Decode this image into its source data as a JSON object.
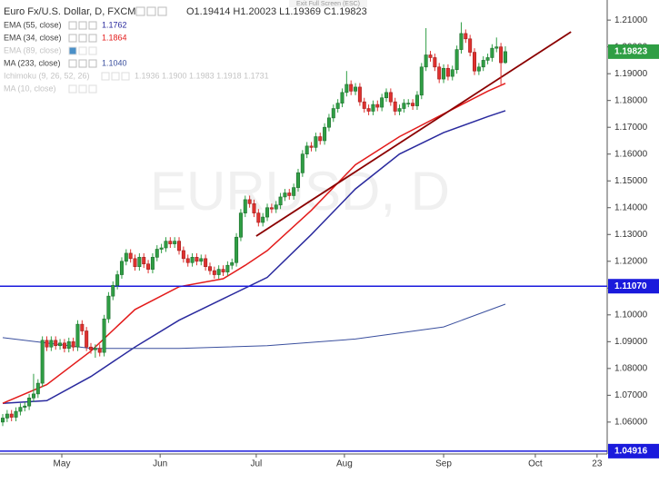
{
  "chart_data": {
    "type": "candlestick",
    "title": "Euro Fx/U.S. Dollar, D, FXCM",
    "ohlc_readout": "O1.19414  H1.20023  L1.19369  C1.19823",
    "fullscreen_hint": "Exit Full Screen (ESC)",
    "watermark": "EURUSD, D",
    "up_color": "#2f9e44",
    "down_color": "#e0312f",
    "x": [
      0,
      1,
      2,
      3,
      4,
      5,
      6,
      7,
      8,
      9,
      10,
      11,
      12,
      13,
      14,
      15,
      16,
      17,
      18,
      19,
      20,
      21,
      22,
      23,
      24,
      25,
      26,
      27,
      28,
      29,
      30,
      31,
      32,
      33,
      34,
      35,
      36,
      37,
      38,
      39,
      40,
      41,
      42,
      43,
      44,
      45,
      46,
      47,
      48,
      49,
      50,
      51,
      52,
      53,
      54,
      55,
      56,
      57,
      58,
      59,
      60,
      61,
      62,
      63,
      64,
      65,
      66,
      67,
      68,
      69,
      70,
      71,
      72,
      73,
      74,
      75,
      76,
      77,
      78,
      79,
      80,
      81,
      82,
      83,
      84,
      85,
      86,
      87,
      88,
      89,
      90,
      91,
      92,
      93,
      94,
      95,
      96,
      97,
      98,
      99,
      100,
      101,
      102,
      103,
      104,
      105,
      106,
      107,
      108,
      109,
      110,
      111,
      112,
      113,
      114
    ],
    "open": [
      1.06,
      1.0615,
      1.063,
      1.0618,
      1.064,
      1.0655,
      1.066,
      1.069,
      1.0705,
      1.0745,
      1.0905,
      1.088,
      1.0905,
      1.0885,
      1.0895,
      1.0875,
      1.09,
      1.088,
      1.0965,
      1.094,
      1.088,
      1.087,
      1.0875,
      1.086,
      1.0985,
      1.107,
      1.111,
      1.115,
      1.12,
      1.123,
      1.121,
      1.118,
      1.1215,
      1.119,
      1.117,
      1.1215,
      1.1245,
      1.125,
      1.1275,
      1.1265,
      1.1275,
      1.124,
      1.121,
      1.1195,
      1.1215,
      1.12,
      1.121,
      1.118,
      1.1165,
      1.115,
      1.117,
      1.116,
      1.1185,
      1.1195,
      1.129,
      1.138,
      1.143,
      1.1415,
      1.138,
      1.1345,
      1.1365,
      1.14,
      1.1395,
      1.141,
      1.144,
      1.1455,
      1.1445,
      1.1475,
      1.153,
      1.16,
      1.163,
      1.1625,
      1.1665,
      1.165,
      1.17,
      1.1735,
      1.177,
      1.179,
      1.183,
      1.186,
      1.1835,
      1.185,
      1.1795,
      1.177,
      1.176,
      1.1785,
      1.1775,
      1.181,
      1.183,
      1.1795,
      1.176,
      1.177,
      1.179,
      1.179,
      1.178,
      1.182,
      1.1925,
      1.197,
      1.196,
      1.1925,
      1.188,
      1.192,
      1.189,
      1.1915,
      1.199,
      1.205,
      1.203,
      1.198,
      1.191,
      1.1925,
      1.195,
      1.196,
      1.1995,
      1.2,
      1.19414
    ],
    "high": [
      1.063,
      1.0645,
      1.0645,
      1.0655,
      1.067,
      1.0675,
      1.0705,
      1.078,
      1.076,
      1.092,
      1.092,
      1.092,
      1.092,
      1.091,
      1.091,
      1.0915,
      1.0915,
      1.098,
      1.098,
      1.0955,
      1.0895,
      1.089,
      1.089,
      1.1,
      1.1085,
      1.1125,
      1.1165,
      1.1215,
      1.1245,
      1.1245,
      1.1225,
      1.123,
      1.123,
      1.1205,
      1.123,
      1.126,
      1.1265,
      1.129,
      1.129,
      1.129,
      1.129,
      1.1255,
      1.1225,
      1.123,
      1.123,
      1.1225,
      1.1225,
      1.1195,
      1.118,
      1.1185,
      1.1185,
      1.12,
      1.121,
      1.1305,
      1.1395,
      1.1445,
      1.1445,
      1.143,
      1.1395,
      1.138,
      1.1415,
      1.1415,
      1.1425,
      1.1455,
      1.147,
      1.147,
      1.149,
      1.1545,
      1.1615,
      1.1645,
      1.1645,
      1.168,
      1.168,
      1.1715,
      1.175,
      1.1785,
      1.1805,
      1.1845,
      1.191,
      1.1875,
      1.1865,
      1.1865,
      1.181,
      1.1785,
      1.18,
      1.18,
      1.1825,
      1.1845,
      1.1845,
      1.181,
      1.1785,
      1.1805,
      1.1805,
      1.1805,
      1.1835,
      1.194,
      1.207,
      1.1985,
      1.1975,
      1.194,
      1.1935,
      1.1935,
      1.193,
      1.2005,
      1.2092,
      1.2065,
      1.2045,
      1.1995,
      1.194,
      1.1965,
      1.1975,
      1.201,
      1.2035,
      1.2015,
      1.20023
    ],
    "low": [
      1.0585,
      1.06,
      1.0603,
      1.0603,
      1.0625,
      1.064,
      1.0645,
      1.0675,
      1.069,
      1.073,
      1.0865,
      1.0865,
      1.087,
      1.087,
      1.086,
      1.086,
      1.0865,
      1.0865,
      1.0925,
      1.0865,
      1.0855,
      1.084,
      1.0845,
      1.0845,
      1.097,
      1.1055,
      1.1095,
      1.1135,
      1.1185,
      1.1195,
      1.1165,
      1.1165,
      1.1175,
      1.1155,
      1.1155,
      1.12,
      1.123,
      1.1235,
      1.125,
      1.125,
      1.1225,
      1.1195,
      1.118,
      1.118,
      1.1185,
      1.1185,
      1.1165,
      1.115,
      1.1135,
      1.1135,
      1.1145,
      1.1145,
      1.117,
      1.118,
      1.1275,
      1.1365,
      1.14,
      1.1365,
      1.133,
      1.133,
      1.135,
      1.138,
      1.138,
      1.1395,
      1.1425,
      1.143,
      1.143,
      1.146,
      1.1515,
      1.1585,
      1.161,
      1.161,
      1.1635,
      1.1635,
      1.1685,
      1.172,
      1.1755,
      1.1775,
      1.1815,
      1.182,
      1.182,
      1.178,
      1.1755,
      1.1745,
      1.1745,
      1.176,
      1.176,
      1.1795,
      1.178,
      1.1745,
      1.1745,
      1.1755,
      1.1775,
      1.1765,
      1.1765,
      1.1805,
      1.191,
      1.1945,
      1.191,
      1.1865,
      1.1865,
      1.1875,
      1.1875,
      1.19,
      1.1975,
      1.2015,
      1.1965,
      1.1895,
      1.1895,
      1.191,
      1.1935,
      1.1945,
      1.198,
      1.186,
      1.19369
    ],
    "close": [
      1.0615,
      1.063,
      1.0618,
      1.064,
      1.0655,
      1.066,
      1.069,
      1.0705,
      1.0745,
      1.0905,
      1.088,
      1.0905,
      1.0885,
      1.0895,
      1.0875,
      1.09,
      1.088,
      1.0965,
      1.094,
      1.088,
      1.087,
      1.0875,
      1.086,
      1.0985,
      1.107,
      1.111,
      1.115,
      1.12,
      1.123,
      1.121,
      1.118,
      1.1215,
      1.119,
      1.117,
      1.1215,
      1.1245,
      1.125,
      1.1275,
      1.1265,
      1.1275,
      1.124,
      1.121,
      1.1195,
      1.1215,
      1.12,
      1.121,
      1.118,
      1.1165,
      1.115,
      1.117,
      1.116,
      1.1185,
      1.1195,
      1.129,
      1.138,
      1.143,
      1.1415,
      1.138,
      1.1345,
      1.1365,
      1.14,
      1.1395,
      1.141,
      1.144,
      1.1455,
      1.1445,
      1.1475,
      1.153,
      1.16,
      1.163,
      1.1625,
      1.1665,
      1.165,
      1.17,
      1.1735,
      1.177,
      1.179,
      1.183,
      1.186,
      1.1835,
      1.185,
      1.1795,
      1.177,
      1.176,
      1.1785,
      1.1775,
      1.181,
      1.183,
      1.1795,
      1.176,
      1.177,
      1.179,
      1.179,
      1.178,
      1.182,
      1.1925,
      1.197,
      1.196,
      1.1925,
      1.188,
      1.192,
      1.189,
      1.1915,
      1.199,
      1.205,
      1.203,
      1.198,
      1.191,
      1.1925,
      1.195,
      1.196,
      1.1995,
      1.2,
      1.1941,
      1.19823
    ],
    "last_price_label": "1.19823",
    "last_price_color": "#2f9e44",
    "indicators": [
      {
        "name": "EMA (55, close)",
        "legend_value": "1.1762",
        "color": "#2a2a9e",
        "visible": true,
        "width": 1.5,
        "x": [
          0,
          10,
          20,
          30,
          40,
          50,
          60,
          70,
          80,
          90,
          100,
          110,
          114
        ],
        "values": [
          1.067,
          1.068,
          1.077,
          1.088,
          1.098,
          1.106,
          1.114,
          1.13,
          1.147,
          1.16,
          1.168,
          1.174,
          1.1762
        ]
      },
      {
        "name": "EMA (34, close)",
        "legend_value": "1.1864",
        "color": "#e31b1b",
        "visible": true,
        "width": 1.5,
        "x": [
          0,
          10,
          20,
          30,
          40,
          50,
          55,
          60,
          70,
          80,
          90,
          100,
          110,
          114
        ],
        "values": [
          1.067,
          1.074,
          1.0865,
          1.102,
          1.1105,
          1.1135,
          1.1185,
          1.124,
          1.139,
          1.156,
          1.1665,
          1.175,
          1.1835,
          1.1864
        ]
      },
      {
        "name": "EMA (89, close)",
        "visible": false
      },
      {
        "name": "MA (233, close)",
        "legend_value": "1.1040",
        "color": "#3a4f9e",
        "visible": true,
        "width": 1,
        "x": [
          0,
          20,
          40,
          60,
          80,
          100,
          114
        ],
        "values": [
          1.0915,
          1.0875,
          1.0875,
          1.0885,
          1.091,
          1.0955,
          1.104
        ]
      },
      {
        "name": "Ichimoku (9, 26, 52, 26)",
        "legend_value": "1.1936  1.1900  1.1983  1.1918  1.1731",
        "visible": false
      },
      {
        "name": "MA (10, close)",
        "visible": false
      }
    ],
    "trendline": {
      "color": "#8b0000",
      "x": [
        57.5,
        128.9
      ],
      "values": [
        1.1294,
        1.2056
      ]
    },
    "hlines": [
      {
        "value": 1.1107,
        "label": "1.11070",
        "color": "#1a1adc"
      },
      {
        "value": 1.04916,
        "label": "1.04916",
        "color": "#1a1adc"
      }
    ],
    "xlim": [
      -0.62,
      137.1
    ],
    "xticks": [
      {
        "value": 13.4,
        "label": "May"
      },
      {
        "value": 35.7,
        "label": "Jun"
      },
      {
        "value": 57.5,
        "label": "Jul"
      },
      {
        "value": 77.5,
        "label": "Aug"
      },
      {
        "value": 100,
        "label": "Sep"
      },
      {
        "value": 120.8,
        "label": "Oct"
      },
      {
        "value": 134.8,
        "label": "23"
      }
    ],
    "ylim": [
      1.0481,
      1.2175
    ],
    "yticks": [
      {
        "value": 1.06,
        "label": "1.06000"
      },
      {
        "value": 1.07,
        "label": "1.07000"
      },
      {
        "value": 1.08,
        "label": "1.08000"
      },
      {
        "value": 1.09,
        "label": "1.09000"
      },
      {
        "value": 1.1,
        "label": "1.10000"
      },
      {
        "value": 1.11,
        "label": "1.11000"
      },
      {
        "value": 1.12,
        "label": "1.12000"
      },
      {
        "value": 1.13,
        "label": "1.13000"
      },
      {
        "value": 1.14,
        "label": "1.14000"
      },
      {
        "value": 1.15,
        "label": "1.15000"
      },
      {
        "value": 1.16,
        "label": "1.16000"
      },
      {
        "value": 1.17,
        "label": "1.17000"
      },
      {
        "value": 1.18,
        "label": "1.18000"
      },
      {
        "value": 1.19,
        "label": "1.19000"
      },
      {
        "value": 1.2,
        "label": "1.20000"
      },
      {
        "value": 1.21,
        "label": "1.21000"
      }
    ],
    "grid": false
  }
}
